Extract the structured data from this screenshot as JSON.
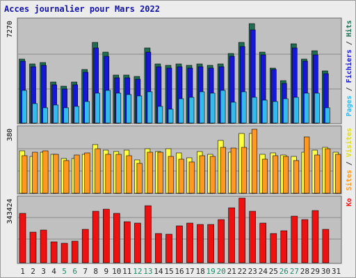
{
  "title": "Acces journalier pour Mars 2022",
  "colors": {
    "plot_bg": "#c0c0c0",
    "grid": "#8a8a8a",
    "hits": "#1f6e52",
    "files": "#1717d6",
    "pages": "#33bbee",
    "visits": "#ffff44",
    "sites": "#ff9922",
    "kb": "#ee1111",
    "weekend_label": "#1e8a6a",
    "weekday_label": "#222222",
    "title": "#1111aa",
    "label_pages": "#33bbee",
    "label_files": "#1717d6",
    "label_hits": "#1f6e52",
    "label_sites": "#ff9922",
    "label_visits": "#dddd22",
    "label_kb": "#ee1111",
    "label_sep": "#333333"
  },
  "chart_data": [
    {
      "type": "bar",
      "panel": "top",
      "ymax_label": "7270",
      "ymax": 7270,
      "right_labels": [
        {
          "text": "Pages",
          "color_key": "label_pages"
        },
        {
          "text": " / ",
          "color_key": "label_sep"
        },
        {
          "text": "Fichiers",
          "color_key": "label_files"
        },
        {
          "text": " / ",
          "color_key": "label_sep"
        },
        {
          "text": "Hits",
          "color_key": "label_hits"
        }
      ],
      "categories": [
        "1",
        "2",
        "3",
        "4",
        "5",
        "6",
        "7",
        "8",
        "9",
        "10",
        "11",
        "12",
        "13",
        "14",
        "15",
        "16",
        "17",
        "18",
        "19",
        "20",
        "21",
        "22",
        "23",
        "24",
        "25",
        "26",
        "27",
        "28",
        "29",
        "30",
        "31"
      ],
      "weekend_days": [
        "5",
        "6",
        "12",
        "13",
        "19",
        "20",
        "26",
        "27"
      ],
      "series": [
        {
          "name": "Hits",
          "color_key": "hits",
          "values": [
            4700,
            4300,
            4400,
            3000,
            2700,
            3000,
            3900,
            5900,
            5200,
            3500,
            3500,
            3400,
            5500,
            4300,
            4200,
            4300,
            4200,
            4300,
            4200,
            4300,
            5100,
            5900,
            7270,
            5200,
            4000,
            3100,
            5800,
            4700,
            5300,
            3800,
            null
          ]
        },
        {
          "name": "Fichiers",
          "color_key": "files",
          "values": [
            4500,
            4100,
            4200,
            2800,
            2500,
            2800,
            3700,
            5500,
            4900,
            3300,
            3300,
            3200,
            5200,
            4100,
            4000,
            4100,
            4000,
            4100,
            4000,
            4100,
            4900,
            5600,
            6800,
            5000,
            3900,
            2900,
            5500,
            4500,
            5000,
            3600,
            null
          ]
        },
        {
          "name": "Pages",
          "color_key": "pages",
          "values": [
            2400,
            1400,
            1100,
            1300,
            1100,
            1200,
            1600,
            2200,
            2400,
            2200,
            2100,
            2000,
            2300,
            1200,
            1000,
            1800,
            1900,
            2300,
            2200,
            2400,
            1500,
            2300,
            1900,
            1700,
            1600,
            1800,
            1900,
            2200,
            2200,
            1100,
            null
          ]
        }
      ]
    },
    {
      "type": "bar",
      "panel": "middle",
      "ymax_label": "380",
      "ymax": 380,
      "right_labels": [
        {
          "text": "Sites",
          "color_key": "label_sites"
        },
        {
          "text": " / ",
          "color_key": "label_sep"
        },
        {
          "text": "Visites",
          "color_key": "label_visits"
        }
      ],
      "categories": [
        "1",
        "2",
        "3",
        "4",
        "5",
        "6",
        "7",
        "8",
        "9",
        "10",
        "11",
        "12",
        "13",
        "14",
        "15",
        "16",
        "17",
        "18",
        "19",
        "20",
        "21",
        "22",
        "23",
        "24",
        "25",
        "26",
        "27",
        "28",
        "29",
        "30",
        "31"
      ],
      "series": [
        {
          "name": "Visites",
          "color_key": "visits",
          "values": [
            250,
            215,
            240,
            230,
            205,
            205,
            230,
            285,
            255,
            245,
            255,
            195,
            260,
            245,
            260,
            235,
            210,
            245,
            230,
            310,
            240,
            350,
            350,
            230,
            235,
            225,
            215,
            240,
            255,
            270,
            240
          ]
        },
        {
          "name": "Sites",
          "color_key": "sites",
          "values": [
            220,
            240,
            250,
            230,
            190,
            225,
            235,
            260,
            230,
            230,
            220,
            175,
            240,
            240,
            215,
            200,
            185,
            220,
            215,
            270,
            265,
            270,
            375,
            200,
            220,
            215,
            190,
            330,
            225,
            260,
            230
          ]
        }
      ]
    },
    {
      "type": "bar",
      "panel": "bottom",
      "ymax_label": "343424",
      "ymax": 343424,
      "right_labels": [
        {
          "text": "Ko",
          "color_key": "label_kb"
        }
      ],
      "categories": [
        "1",
        "2",
        "3",
        "4",
        "5",
        "6",
        "7",
        "8",
        "9",
        "10",
        "11",
        "12",
        "13",
        "14",
        "15",
        "16",
        "17",
        "18",
        "19",
        "20",
        "21",
        "22",
        "23",
        "24",
        "25",
        "26",
        "27",
        "28",
        "29",
        "30",
        "31"
      ],
      "series": [
        {
          "name": "Ko",
          "color_key": "kb",
          "values": [
            260000,
            160000,
            170000,
            110000,
            102000,
            115000,
            175000,
            270000,
            280000,
            260000,
            215000,
            210000,
            300000,
            154000,
            150000,
            195000,
            208000,
            202000,
            201000,
            225000,
            290000,
            340000,
            270000,
            210000,
            153000,
            168000,
            246000,
            226000,
            275000,
            175000,
            null
          ]
        }
      ]
    }
  ]
}
